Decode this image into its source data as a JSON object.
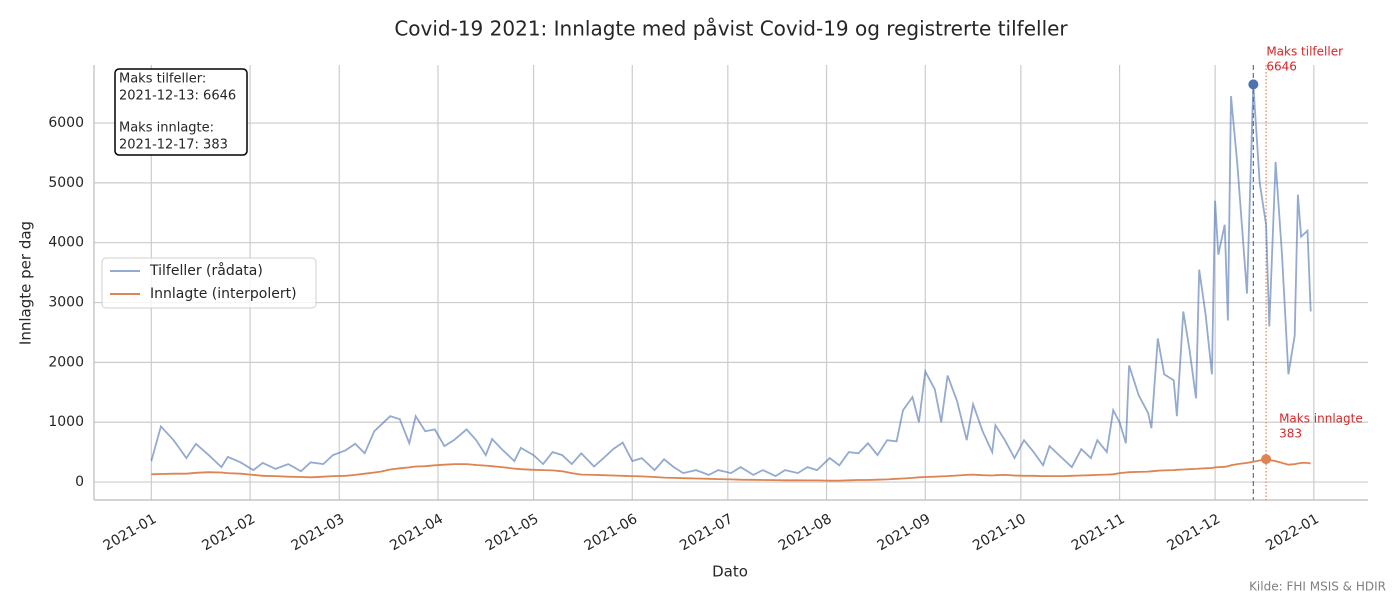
{
  "chart_data": {
    "type": "line",
    "title": "Covid-19 2021: Innlagte med påvist Covid-19 og registrerte tilfeller",
    "xlabel": "Dato",
    "ylabel": "Innlagte per dag",
    "source": "Kilde: FHI MSIS & HDIR",
    "grid": true,
    "legend": "center left",
    "xlim": [
      "2020-12-14",
      "2022-01-18"
    ],
    "xticks": [
      "2021-01",
      "2021-02",
      "2021-03",
      "2021-04",
      "2021-05",
      "2021-06",
      "2021-07",
      "2021-08",
      "2021-09",
      "2021-10",
      "2021-11",
      "2021-12",
      "2022-01"
    ],
    "ylim": [
      -300,
      6970
    ],
    "yticks": [
      0,
      1000,
      2000,
      3000,
      4000,
      5000,
      6000
    ],
    "x": [
      "2021-01-01",
      "2021-01-04",
      "2021-01-08",
      "2021-01-12",
      "2021-01-15",
      "2021-01-19",
      "2021-01-23",
      "2021-01-25",
      "2021-01-29",
      "2021-02-02",
      "2021-02-05",
      "2021-02-09",
      "2021-02-13",
      "2021-02-17",
      "2021-02-20",
      "2021-02-24",
      "2021-02-27",
      "2021-03-03",
      "2021-03-06",
      "2021-03-09",
      "2021-03-12",
      "2021-03-14",
      "2021-03-17",
      "2021-03-20",
      "2021-03-23",
      "2021-03-25",
      "2021-03-28",
      "2021-03-31",
      "2021-04-03",
      "2021-04-06",
      "2021-04-10",
      "2021-04-13",
      "2021-04-16",
      "2021-04-18",
      "2021-04-21",
      "2021-04-25",
      "2021-04-27",
      "2021-05-01",
      "2021-05-04",
      "2021-05-07",
      "2021-05-10",
      "2021-05-13",
      "2021-05-16",
      "2021-05-20",
      "2021-05-23",
      "2021-05-26",
      "2021-05-29",
      "2021-06-01",
      "2021-06-04",
      "2021-06-08",
      "2021-06-11",
      "2021-06-14",
      "2021-06-17",
      "2021-06-21",
      "2021-06-25",
      "2021-06-28",
      "2021-07-02",
      "2021-07-05",
      "2021-07-09",
      "2021-07-12",
      "2021-07-16",
      "2021-07-19",
      "2021-07-23",
      "2021-07-26",
      "2021-07-29",
      "2021-08-02",
      "2021-08-05",
      "2021-08-08",
      "2021-08-11",
      "2021-08-14",
      "2021-08-17",
      "2021-08-20",
      "2021-08-23",
      "2021-08-25",
      "2021-08-28",
      "2021-08-30",
      "2021-09-01",
      "2021-09-04",
      "2021-09-06",
      "2021-09-08",
      "2021-09-11",
      "2021-09-14",
      "2021-09-16",
      "2021-09-19",
      "2021-09-22",
      "2021-09-23",
      "2021-09-26",
      "2021-09-29",
      "2021-10-02",
      "2021-10-05",
      "2021-10-08",
      "2021-10-10",
      "2021-10-14",
      "2021-10-17",
      "2021-10-20",
      "2021-10-23",
      "2021-10-25",
      "2021-10-28",
      "2021-10-30",
      "2021-11-01",
      "2021-11-03",
      "2021-11-04",
      "2021-11-07",
      "2021-11-10",
      "2021-11-11",
      "2021-11-13",
      "2021-11-15",
      "2021-11-18",
      "2021-11-19",
      "2021-11-21",
      "2021-11-23",
      "2021-11-25",
      "2021-11-26",
      "2021-11-28",
      "2021-11-30",
      "2021-12-01",
      "2021-12-02",
      "2021-12-04",
      "2021-12-05",
      "2021-12-06",
      "2021-12-08",
      "2021-12-11",
      "2021-12-13",
      "2021-12-15",
      "2021-12-17",
      "2021-12-18",
      "2021-12-20",
      "2021-12-22",
      "2021-12-24",
      "2021-12-26",
      "2021-12-27",
      "2021-12-28",
      "2021-12-30",
      "2021-12-31"
    ],
    "series": [
      {
        "name": "Tilfeller (rådata)",
        "color": "#4c72b0",
        "opacity": 0.6,
        "values": [
          350,
          930,
          700,
          400,
          640,
          450,
          250,
          420,
          330,
          200,
          320,
          220,
          300,
          180,
          330,
          300,
          450,
          530,
          640,
          480,
          850,
          950,
          1100,
          1050,
          650,
          1100,
          850,
          880,
          600,
          700,
          880,
          700,
          450,
          720,
          550,
          350,
          570,
          450,
          300,
          500,
          450,
          300,
          480,
          260,
          400,
          550,
          660,
          350,
          400,
          200,
          380,
          250,
          150,
          200,
          120,
          200,
          150,
          250,
          120,
          200,
          100,
          200,
          150,
          250,
          200,
          400,
          280,
          500,
          480,
          650,
          450,
          700,
          680,
          1200,
          1420,
          1000,
          1850,
          1550,
          1000,
          1780,
          1350,
          700,
          1300,
          850,
          500,
          950,
          700,
          400,
          700,
          500,
          280,
          600,
          400,
          250,
          550,
          400,
          700,
          500,
          1200,
          1000,
          650,
          1950,
          1450,
          1150,
          900,
          2400,
          1800,
          1700,
          1100,
          2850,
          2200,
          1400,
          3550,
          2800,
          1800,
          4700,
          3800,
          4300,
          2700,
          6450,
          5300,
          3150,
          6646,
          5000,
          4300,
          2600,
          5350,
          3800,
          1800,
          2450,
          4800,
          4100,
          4200,
          2850
        ]
      },
      {
        "name": "Innlagte (interpolert)",
        "color": "#dd8452",
        "opacity": 1,
        "values": [
          130,
          135,
          140,
          140,
          155,
          165,
          160,
          150,
          140,
          120,
          105,
          100,
          90,
          85,
          80,
          90,
          100,
          105,
          120,
          140,
          160,
          175,
          210,
          230,
          245,
          260,
          265,
          280,
          290,
          300,
          300,
          285,
          275,
          265,
          250,
          225,
          215,
          205,
          200,
          195,
          180,
          150,
          125,
          120,
          115,
          110,
          105,
          100,
          95,
          85,
          75,
          70,
          65,
          60,
          55,
          50,
          45,
          40,
          38,
          35,
          32,
          30,
          30,
          28,
          27,
          25,
          25,
          30,
          35,
          35,
          40,
          45,
          55,
          60,
          70,
          80,
          85,
          90,
          95,
          100,
          110,
          120,
          125,
          115,
          110,
          115,
          120,
          110,
          105,
          105,
          100,
          100,
          100,
          105,
          110,
          115,
          120,
          125,
          130,
          150,
          160,
          165,
          170,
          175,
          180,
          190,
          195,
          200,
          205,
          210,
          215,
          220,
          225,
          230,
          235,
          245,
          250,
          255,
          265,
          280,
          300,
          320,
          340,
          360,
          383,
          370,
          350,
          320,
          290,
          300,
          310,
          320,
          320,
          310
        ]
      }
    ],
    "annotations": [
      {
        "label": [
          "Maks tilfeller",
          "6646"
        ],
        "x": "2021-12-13",
        "y": 6646,
        "color": "#d62728",
        "marker_color": "#4c72b0",
        "line": "dashed"
      },
      {
        "label": [
          "Maks innlagte",
          "383"
        ],
        "x": "2021-12-17",
        "y": 383,
        "color": "#d62728",
        "marker_color": "#dd8452",
        "line": "dotted"
      }
    ],
    "info_box": [
      [
        "Maks tilfeller:",
        "2021-12-13: 6646"
      ],
      [
        "Maks innlagte:",
        "2021-12-17: 383"
      ]
    ]
  }
}
